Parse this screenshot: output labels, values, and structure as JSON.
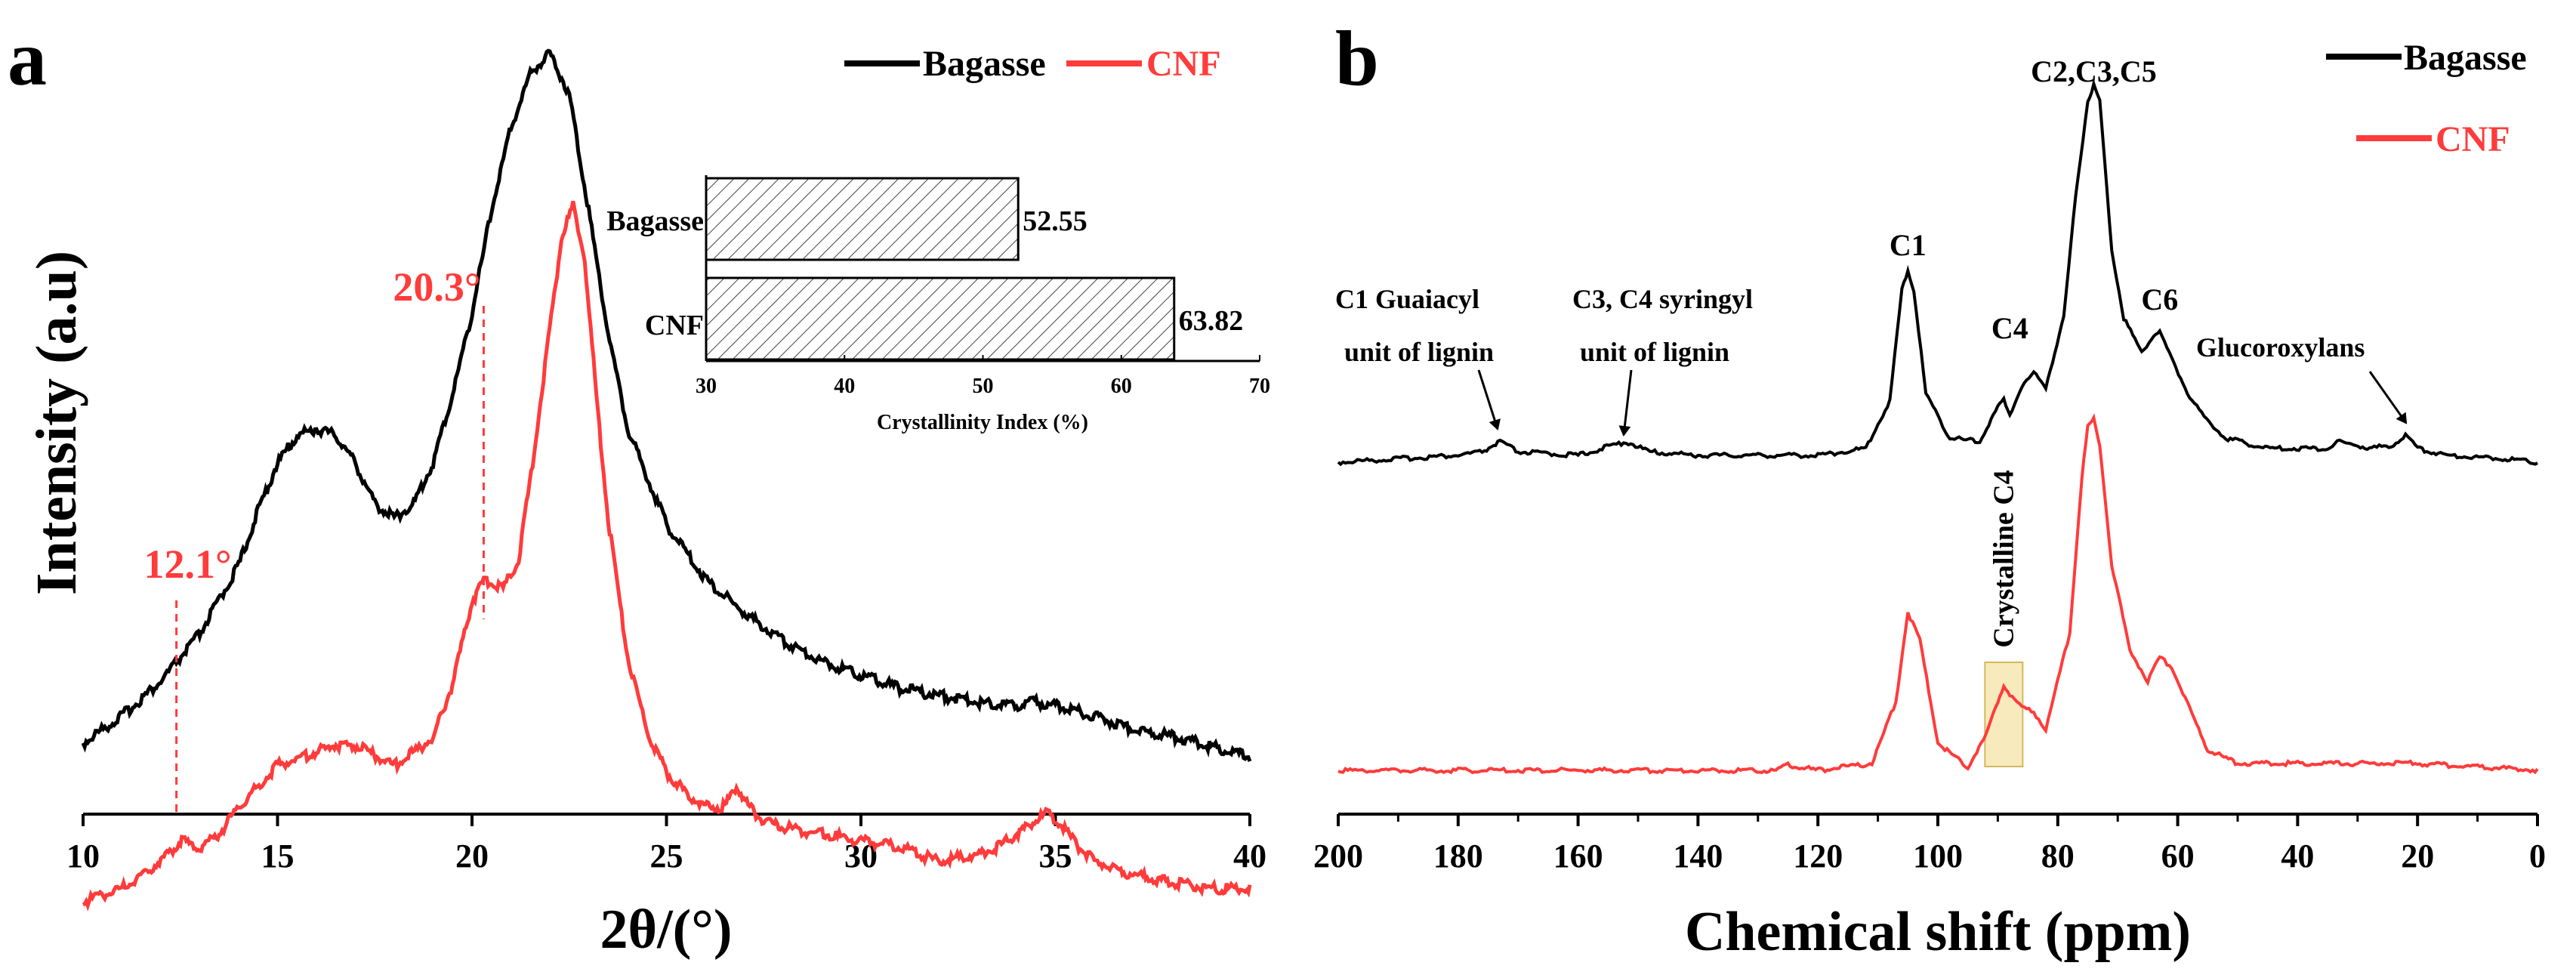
{
  "figure": {
    "panel_a_letter": "a",
    "panel_b_letter": "b"
  },
  "chart_data": [
    {
      "id": "panel-a",
      "type": "line",
      "title": "",
      "xlabel": "2θ/(°)",
      "ylabel": "Intensity (a.u)",
      "xlim": [
        10,
        40
      ],
      "xticks": [
        10,
        15,
        20,
        25,
        30,
        35,
        40
      ],
      "yticks": [],
      "grid": false,
      "legend": {
        "placement": "top-right",
        "entries": [
          "Bagasse",
          "CNF"
        ]
      },
      "series": [
        {
          "name": "Bagasse",
          "color": "#000000",
          "x": [
            10,
            11,
            12,
            13,
            14,
            14.5,
            15,
            15.5,
            16,
            16.5,
            17,
            17.5,
            18,
            18.5,
            19,
            19.5,
            20,
            20.5,
            21,
            21.5,
            22,
            22.5,
            23,
            23.5,
            24,
            25,
            26,
            27,
            28,
            29,
            30,
            31,
            32,
            33,
            34,
            34.5,
            35,
            36,
            37,
            38,
            39,
            40
          ],
          "y": [
            0.02,
            0.06,
            0.11,
            0.18,
            0.28,
            0.36,
            0.43,
            0.47,
            0.48,
            0.47,
            0.43,
            0.37,
            0.35,
            0.37,
            0.43,
            0.53,
            0.65,
            0.8,
            0.92,
            1.0,
            1.03,
            0.97,
            0.8,
            0.62,
            0.48,
            0.34,
            0.26,
            0.21,
            0.17,
            0.14,
            0.12,
            0.1,
            0.09,
            0.08,
            0.075,
            0.08,
            0.075,
            0.06,
            0.04,
            0.03,
            0.015,
            0.0
          ]
        },
        {
          "name": "CNF",
          "color": "#ff3b3b",
          "x": [
            10,
            11,
            12,
            12.5,
            13,
            13.5,
            14,
            15,
            16,
            16.5,
            17,
            18,
            19,
            19.5,
            20,
            20.3,
            20.8,
            21.2,
            21.6,
            22,
            22.3,
            22.6,
            22.9,
            23.2,
            23.5,
            24,
            24.5,
            25,
            25.5,
            26,
            26.5,
            26.8,
            27.1,
            27.5,
            28,
            29,
            30,
            31,
            32,
            33,
            33.5,
            34,
            34.5,
            34.8,
            35.2,
            35.6,
            36,
            37,
            38,
            39,
            40
          ],
          "y": [
            -0.14,
            -0.12,
            -0.08,
            -0.05,
            -0.06,
            -0.04,
            0.0,
            0.06,
            0.08,
            0.09,
            0.09,
            0.06,
            0.1,
            0.18,
            0.3,
            0.33,
            0.32,
            0.36,
            0.52,
            0.7,
            0.83,
            0.88,
            0.8,
            0.6,
            0.42,
            0.22,
            0.11,
            0.05,
            0.02,
            0.0,
            0.0,
            0.03,
            0.0,
            -0.02,
            -0.03,
            -0.04,
            -0.05,
            -0.06,
            -0.08,
            -0.07,
            -0.06,
            -0.04,
            -0.02,
            -0.01,
            -0.03,
            -0.06,
            -0.08,
            -0.1,
            -0.11,
            -0.12,
            -0.12
          ]
        }
      ],
      "annotations": [
        {
          "text": "12.1°",
          "x": 12.4,
          "color": "#ff3b3b"
        },
        {
          "text": "20.3°",
          "x": 20.3,
          "color": "#ff3b3b"
        }
      ],
      "inset": {
        "type": "bar",
        "orientation": "horizontal",
        "categories": [
          "Bagasse",
          "CNF"
        ],
        "values": [
          52.55,
          63.82
        ],
        "value_labels": [
          "52.55",
          "63.82"
        ],
        "xlabel": "Crystallinity Index (%)",
        "xlim": [
          30,
          70
        ],
        "xticks": [
          30,
          40,
          50,
          60,
          70
        ],
        "pattern": "diagonal-hatch"
      }
    },
    {
      "id": "panel-b",
      "type": "line",
      "title": "",
      "xlabel": "Chemical shift (ppm)",
      "ylabel": "",
      "xlim": [
        200,
        0
      ],
      "xticks": [
        200,
        180,
        160,
        140,
        120,
        100,
        80,
        60,
        40,
        20,
        0
      ],
      "grid": false,
      "legend": {
        "placement": "top-right",
        "entries": [
          "Bagasse",
          "CNF"
        ]
      },
      "series": [
        {
          "name": "Bagasse",
          "color": "#000000",
          "x": [
            200,
            190,
            180,
            176,
            173,
            170,
            160,
            154,
            152,
            148,
            140,
            130,
            120,
            112,
            108,
            106,
            105,
            104,
            102,
            98,
            93,
            90,
            89,
            88,
            86,
            84,
            82,
            79,
            77,
            75,
            74,
            73,
            71,
            69,
            66,
            64,
            63,
            61,
            58,
            56,
            52,
            45,
            35,
            33,
            28,
            24,
            22,
            20,
            15,
            5,
            0
          ],
          "y": [
            0.0,
            0.01,
            0.02,
            0.03,
            0.06,
            0.03,
            0.02,
            0.05,
            0.06,
            0.03,
            0.02,
            0.02,
            0.02,
            0.04,
            0.18,
            0.5,
            0.56,
            0.5,
            0.2,
            0.07,
            0.06,
            0.16,
            0.18,
            0.14,
            0.22,
            0.26,
            0.22,
            0.42,
            0.78,
            1.05,
            1.1,
            1.05,
            0.62,
            0.42,
            0.32,
            0.37,
            0.38,
            0.3,
            0.19,
            0.14,
            0.07,
            0.04,
            0.04,
            0.06,
            0.04,
            0.05,
            0.08,
            0.04,
            0.02,
            0.01,
            0.0
          ]
        },
        {
          "name": "CNF",
          "color": "#ff3b3b",
          "x": [
            200,
            180,
            160,
            140,
            127,
            125,
            120,
            111,
            107,
            105,
            103,
            100,
            95,
            92,
            90,
            89,
            88,
            86,
            84,
            82,
            78,
            76,
            75,
            74,
            73,
            71,
            68,
            65,
            63,
            61,
            58,
            55,
            50,
            40,
            30,
            20,
            10,
            0
          ],
          "y": [
            0.0,
            0.0,
            0.0,
            0.0,
            0.0,
            0.015,
            0.0,
            0.02,
            0.2,
            0.46,
            0.38,
            0.08,
            0.01,
            0.1,
            0.2,
            0.25,
            0.22,
            0.18,
            0.17,
            0.12,
            0.4,
            0.85,
            1.0,
            1.02,
            0.95,
            0.6,
            0.35,
            0.26,
            0.33,
            0.3,
            0.18,
            0.06,
            0.02,
            0.02,
            0.02,
            0.02,
            0.01,
            0.0
          ]
        }
      ],
      "annotations": [
        {
          "text": "C1",
          "x": 105
        },
        {
          "text": "C4",
          "x": 88
        },
        {
          "text": "C2,C3,C5",
          "x": 74
        },
        {
          "text": "C6",
          "x": 63
        },
        {
          "text": "C1 Guaiacyl",
          "x": 173
        },
        {
          "text": "unit of lignin",
          "x": 173
        },
        {
          "text": "C3, C4 syringyl",
          "x": 152
        },
        {
          "text": "unit of lignin",
          "x": 152
        },
        {
          "text": "Glucoroxylans",
          "x": 22
        },
        {
          "text": "Crystalline C4",
          "x": 89
        }
      ]
    }
  ]
}
